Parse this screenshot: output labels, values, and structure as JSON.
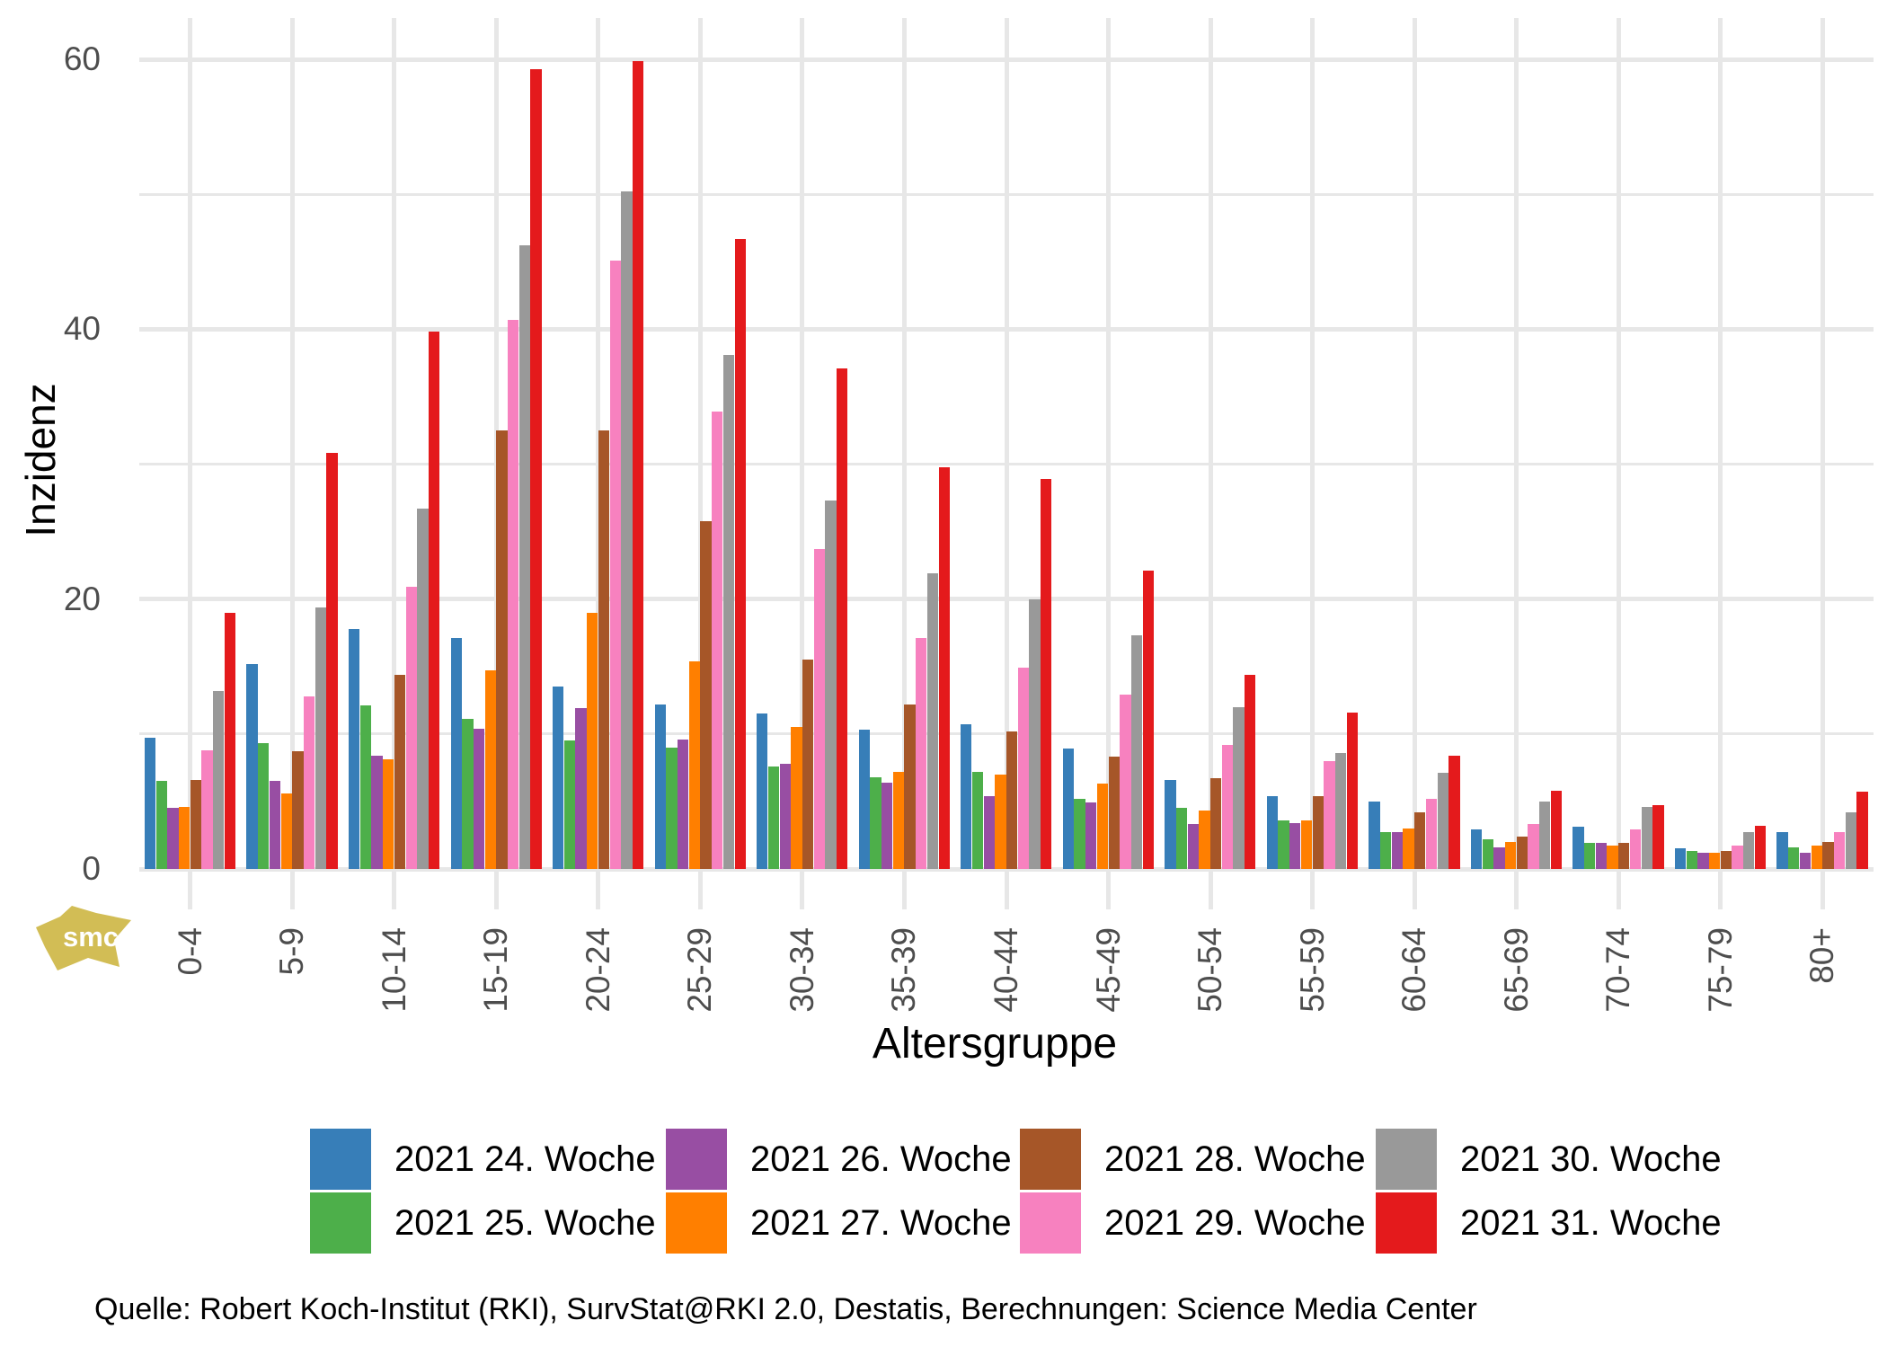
{
  "page": {
    "background": "#ffffff"
  },
  "watermark": {
    "logo_text": "smc",
    "logo_color": "#d2bd55"
  },
  "source_line": "Quelle: Robert Koch-Institut (RKI), SurvStat@RKI 2.0, Destatis, Berechnungen: Science Media Center",
  "chart_data": {
    "type": "bar",
    "title": "",
    "xlabel": "Altersgruppe",
    "ylabel": "Inzidenz",
    "categories": [
      "0-4",
      "5-9",
      "10-14",
      "15-19",
      "20-24",
      "25-29",
      "30-34",
      "35-39",
      "40-44",
      "45-49",
      "50-54",
      "55-59",
      "60-64",
      "65-69",
      "70-74",
      "75-79",
      "80+"
    ],
    "series": [
      {
        "name": "2021 24. Woche",
        "color": "#377eb8",
        "values": [
          9.7,
          15.2,
          17.8,
          17.1,
          13.5,
          12.2,
          11.5,
          10.3,
          10.7,
          8.9,
          6.6,
          5.4,
          5.0,
          2.9,
          3.1,
          1.5,
          2.7
        ]
      },
      {
        "name": "2021 25. Woche",
        "color": "#4daf4a",
        "values": [
          6.5,
          9.3,
          12.1,
          11.1,
          9.5,
          9.0,
          7.6,
          6.8,
          7.2,
          5.2,
          4.5,
          3.6,
          2.7,
          2.2,
          1.9,
          1.3,
          1.6
        ]
      },
      {
        "name": "2021 26. Woche",
        "color": "#984ea3",
        "values": [
          4.5,
          6.5,
          8.4,
          10.4,
          11.9,
          9.6,
          7.8,
          6.4,
          5.4,
          4.9,
          3.3,
          3.4,
          2.7,
          1.6,
          1.9,
          1.2,
          1.2
        ]
      },
      {
        "name": "2021 27. Woche",
        "color": "#ff7f00",
        "values": [
          4.6,
          5.6,
          8.1,
          14.7,
          19.0,
          15.4,
          10.5,
          7.2,
          7.0,
          6.3,
          4.3,
          3.6,
          3.0,
          2.0,
          1.7,
          1.2,
          1.7
        ]
      },
      {
        "name": "2021 28. Woche",
        "color": "#a65628",
        "values": [
          6.6,
          8.7,
          14.4,
          32.5,
          32.5,
          25.8,
          15.5,
          12.2,
          10.2,
          8.3,
          6.7,
          5.4,
          4.2,
          2.4,
          1.9,
          1.3,
          2.0
        ]
      },
      {
        "name": "2021 29. Woche",
        "color": "#f781bf",
        "values": [
          8.8,
          12.8,
          20.9,
          40.7,
          45.1,
          33.9,
          23.7,
          17.1,
          14.9,
          12.9,
          9.2,
          8.0,
          5.2,
          3.3,
          2.9,
          1.7,
          2.7
        ]
      },
      {
        "name": "2021 30. Woche",
        "color": "#999999",
        "values": [
          13.2,
          19.4,
          26.7,
          46.2,
          50.2,
          38.1,
          27.3,
          21.9,
          20.0,
          17.3,
          12.0,
          8.6,
          7.1,
          5.0,
          4.6,
          2.7,
          4.2
        ]
      },
      {
        "name": "2021 31. Woche",
        "color": "#e41a1c",
        "values": [
          19.0,
          30.8,
          39.8,
          59.3,
          59.9,
          46.7,
          37.1,
          29.8,
          28.9,
          22.1,
          14.4,
          11.6,
          8.4,
          5.8,
          4.7,
          3.2,
          5.7
        ]
      }
    ],
    "ylim": [
      0,
      63
    ],
    "yticks_major": [
      0,
      20,
      40,
      60
    ],
    "yticks_minor": [
      10,
      30,
      50
    ],
    "grid": "on",
    "grid_color": "#e7e7e7",
    "axis_text_color": "#4d4d4d",
    "legend_position": "bottom",
    "legend_rows": 2
  }
}
